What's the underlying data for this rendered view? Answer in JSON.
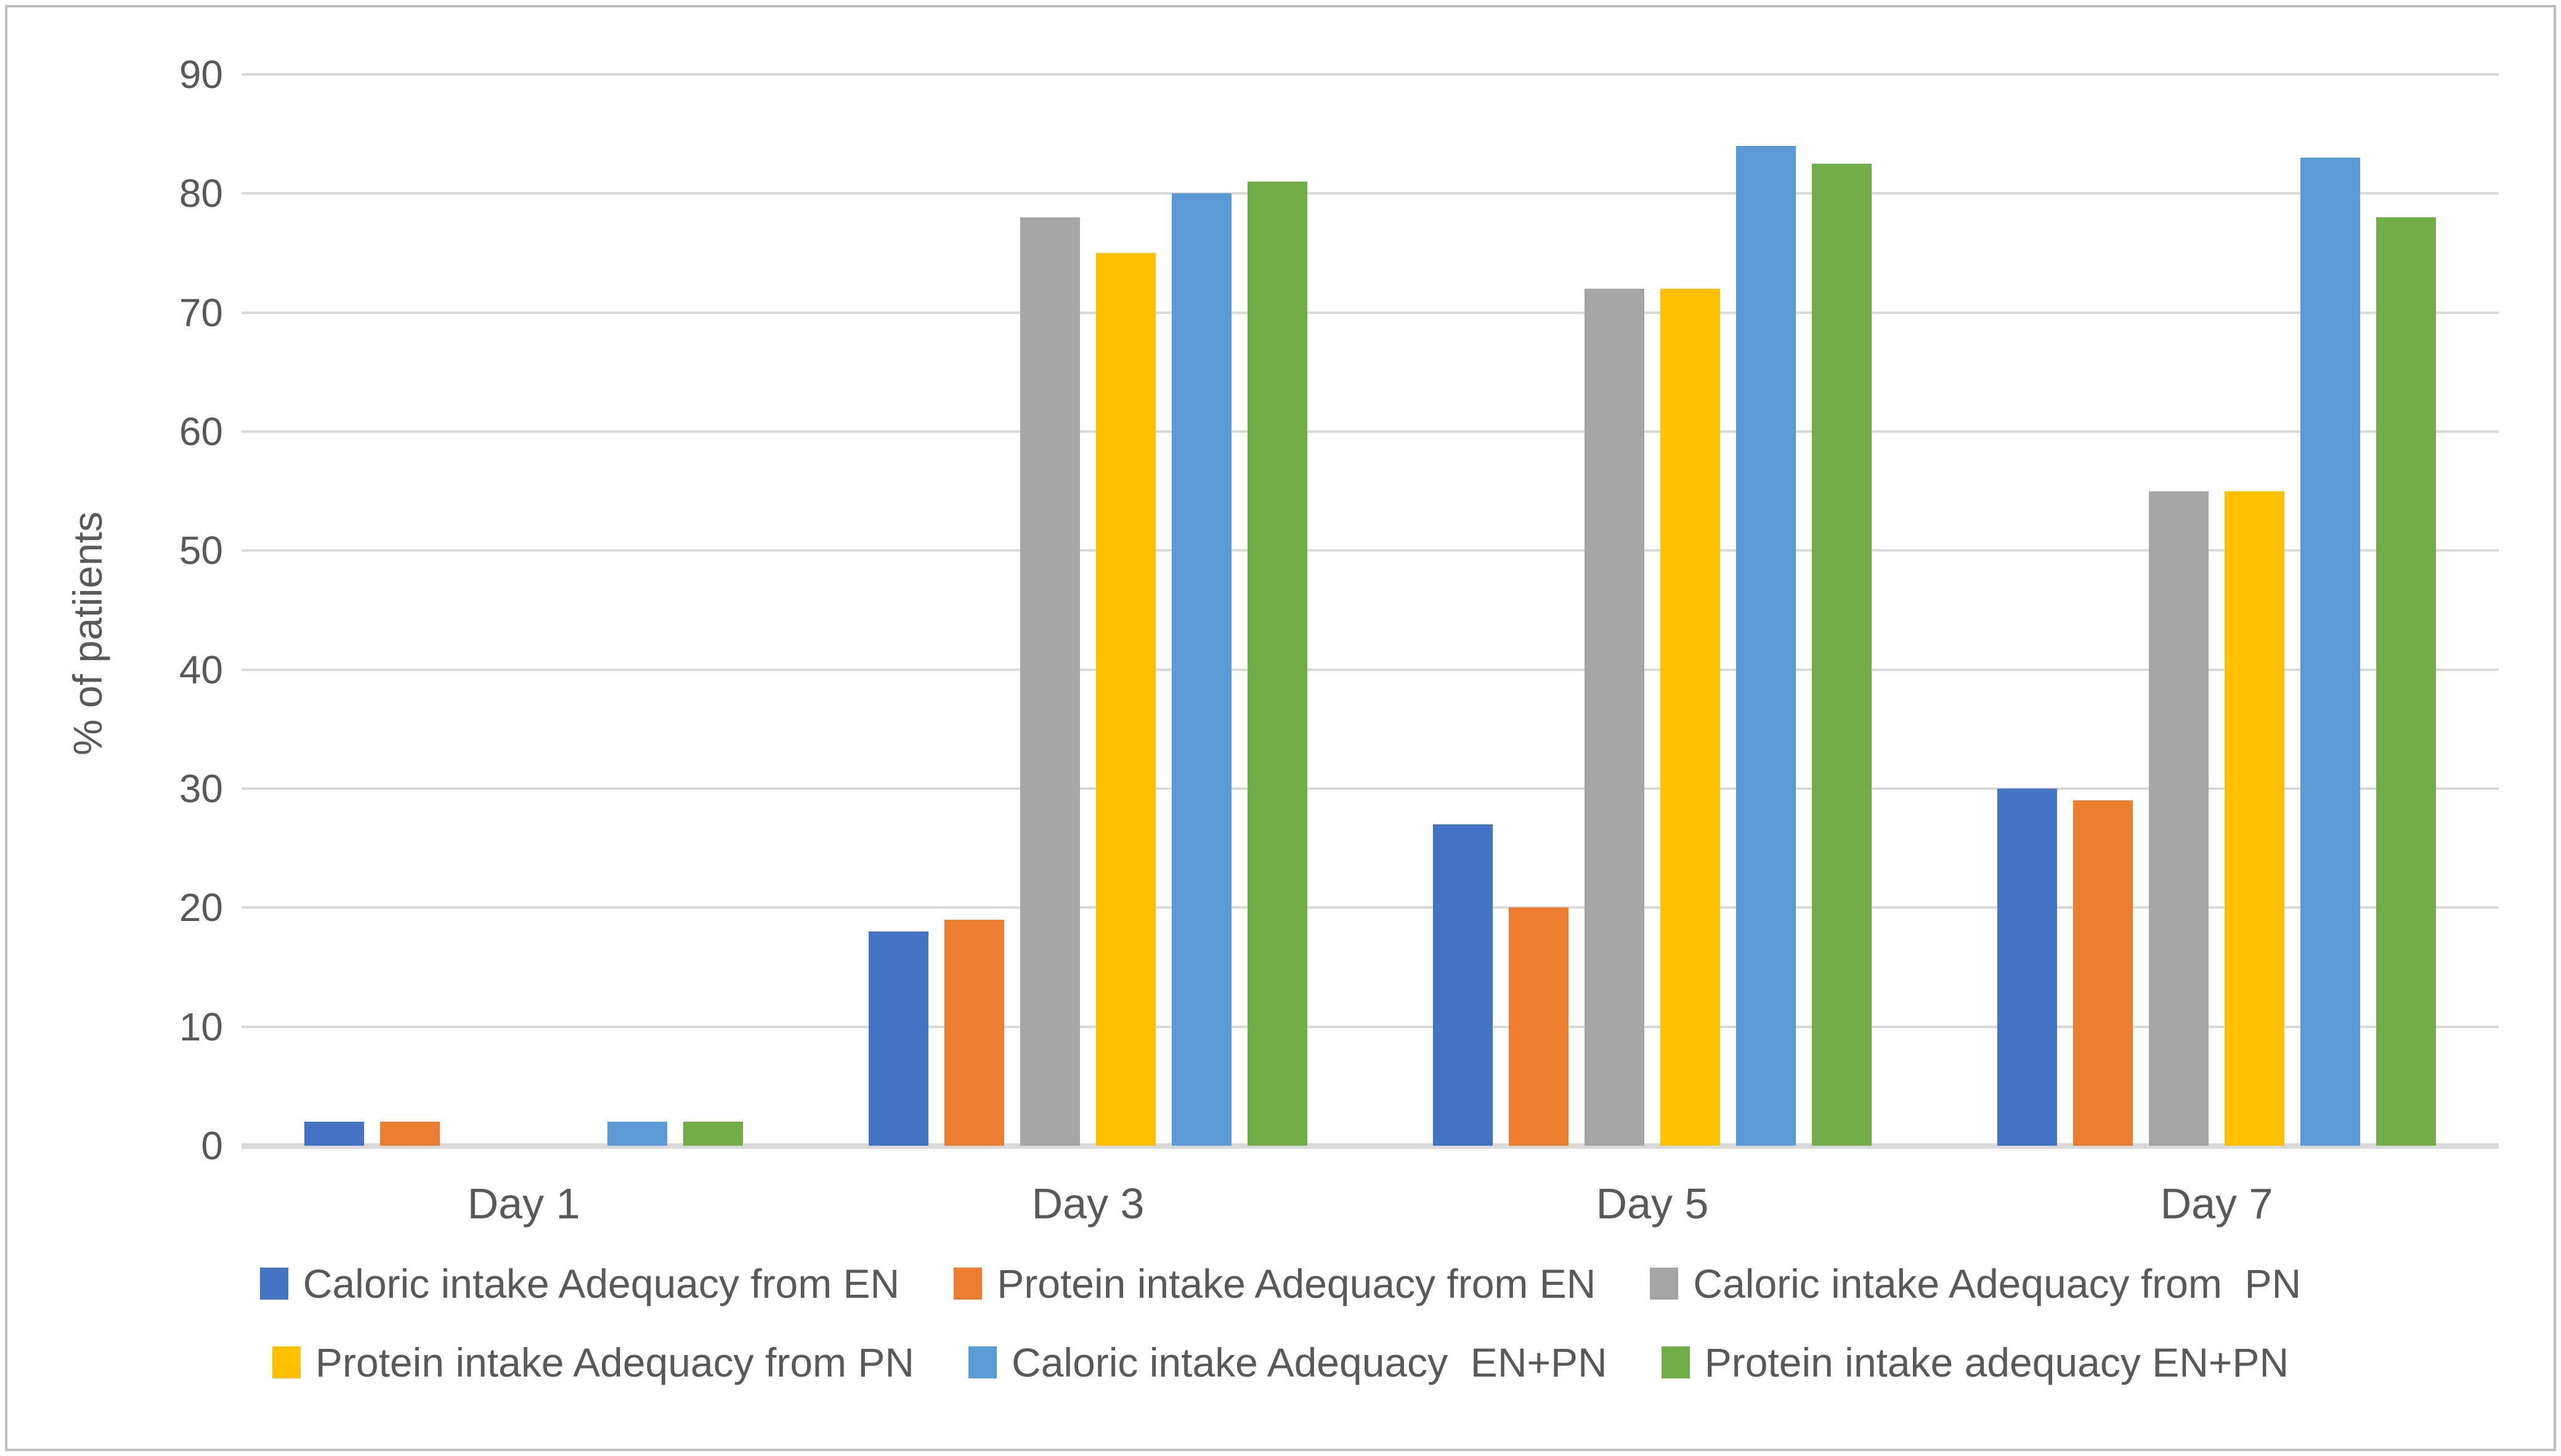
{
  "chart_data": {
    "type": "bar",
    "title": "",
    "xlabel": "",
    "ylabel": "% of patiients",
    "ylim": [
      0,
      90
    ],
    "yticks": [
      0,
      10,
      20,
      30,
      40,
      50,
      60,
      70,
      80,
      90
    ],
    "grid": true,
    "legend_position": "bottom",
    "categories": [
      "Day 1",
      "Day 3",
      "Day 5",
      "Day 7"
    ],
    "series": [
      {
        "name": "Caloric intake Adequacy from EN",
        "color": "#4472C4",
        "values": [
          2,
          18,
          27,
          30
        ]
      },
      {
        "name": "Protein intake Adequacy from EN",
        "color": "#ED7D31",
        "values": [
          2,
          19,
          20,
          29
        ]
      },
      {
        "name": "Caloric intake Adequacy from  PN",
        "color": "#A5A5A5",
        "values": [
          0,
          78,
          72,
          55
        ]
      },
      {
        "name": "Protein intake Adequacy from PN",
        "color": "#FFC000",
        "values": [
          0,
          75,
          72,
          55
        ]
      },
      {
        "name": "Caloric intake Adequacy  EN+PN",
        "color": "#5B9BD5",
        "values": [
          2,
          80,
          84,
          83
        ]
      },
      {
        "name": "Protein intake adequacy EN+PN",
        "color": "#70AD47",
        "values": [
          2,
          81,
          82.5,
          78
        ]
      }
    ],
    "legend_rows": [
      [
        0,
        1,
        2
      ],
      [
        3,
        4,
        5
      ]
    ]
  },
  "colors": {
    "text": "#595959",
    "gridline": "#D9D9D9",
    "zero_axis_line": "#D9D9D9",
    "frame_border": "#BFBFBF",
    "background": "#FFFFFF"
  }
}
